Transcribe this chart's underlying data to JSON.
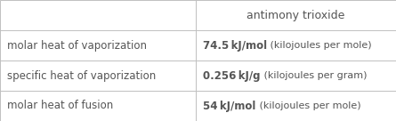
{
  "title": "antimony trioxide",
  "rows": [
    {
      "label": "molar heat of vaporization",
      "value_bold": "74.5 kJ/mol",
      "value_light": " (kilojoules per mole)"
    },
    {
      "label": "specific heat of vaporization",
      "value_bold": "0.256 kJ/g",
      "value_light": " (kilojoules per gram)"
    },
    {
      "label": "molar heat of fusion",
      "value_bold": "54 kJ/mol",
      "value_light": " (kilojoules per mole)"
    }
  ],
  "col_split": 0.495,
  "bg_color": "#ffffff",
  "border_color": "#c0c0c0",
  "text_color": "#555555",
  "label_fontsize": 8.5,
  "value_fontsize": 8.5,
  "title_fontsize": 9.0
}
